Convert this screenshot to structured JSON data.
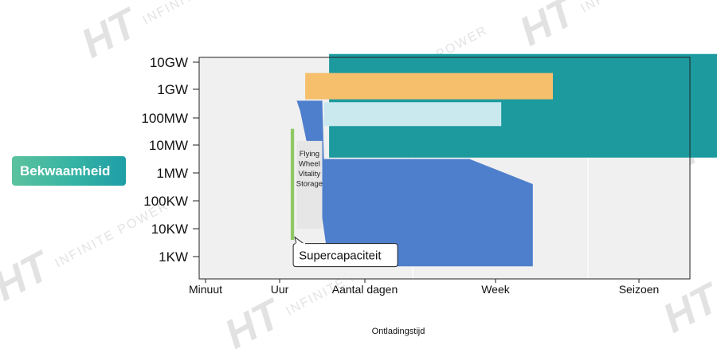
{
  "watermark": {
    "logo": "HT",
    "text": "INFINITE POWER"
  },
  "side_label": "Bekwaamheid",
  "chart_data": {
    "type": "bar",
    "subtype": "range-area",
    "xlabel": "Ontladingstijd",
    "ylabel": "",
    "x_categories": [
      "Minuut",
      "Uur",
      "Aantal dagen",
      "Week",
      "Seizoen"
    ],
    "y_categories": [
      "1KW",
      "10KW",
      "100KW",
      "1MW",
      "10MW",
      "100MW",
      "1GW",
      "10GW"
    ],
    "y_scale": "log",
    "grid": true,
    "series": [
      {
        "label": "",
        "color": "#1c9a9e",
        "polygon": [
          [
            1.58,
            7.3
          ],
          [
            5.81,
            7.3
          ],
          [
            5.81,
            3.55
          ],
          [
            1.58,
            3.55
          ]
        ]
      },
      {
        "label": "",
        "color": "#f5bf6c",
        "polygon": [
          [
            1.3,
            6.6
          ],
          [
            3.4,
            6.6
          ],
          [
            3.4,
            5.65
          ],
          [
            1.3,
            5.65
          ]
        ]
      },
      {
        "label": "",
        "color": "#4e7fcc",
        "polygon": [
          [
            1.2,
            5.6
          ],
          [
            1.5,
            5.6
          ],
          [
            1.52,
            3.5
          ],
          [
            2.8,
            3.5
          ],
          [
            3.26,
            2.6
          ],
          [
            3.26,
            -0.35
          ],
          [
            1.58,
            -0.35
          ],
          [
            1.49,
            1.6
          ],
          [
            1.24,
            5.25
          ]
        ]
      },
      {
        "label": "",
        "color": "#c9e9ef",
        "polygon": [
          [
            1.52,
            5.55
          ],
          [
            3.04,
            5.55
          ],
          [
            3.04,
            4.7
          ],
          [
            1.52,
            4.7
          ]
        ]
      },
      {
        "label": "Flying\nWheel\nVitality\nStorage",
        "color": "#e6e6e6",
        "polygon": [
          [
            1.2,
            4.15
          ],
          [
            1.5,
            4.15
          ],
          [
            1.5,
            1.0
          ],
          [
            1.2,
            1.0
          ]
        ]
      },
      {
        "label": "Supercapaciteit",
        "color": "#8fc964",
        "polygon": [
          [
            1.13,
            4.6
          ],
          [
            1.17,
            4.6
          ],
          [
            1.17,
            0.6
          ],
          [
            1.13,
            0.6
          ]
        ]
      }
    ]
  }
}
